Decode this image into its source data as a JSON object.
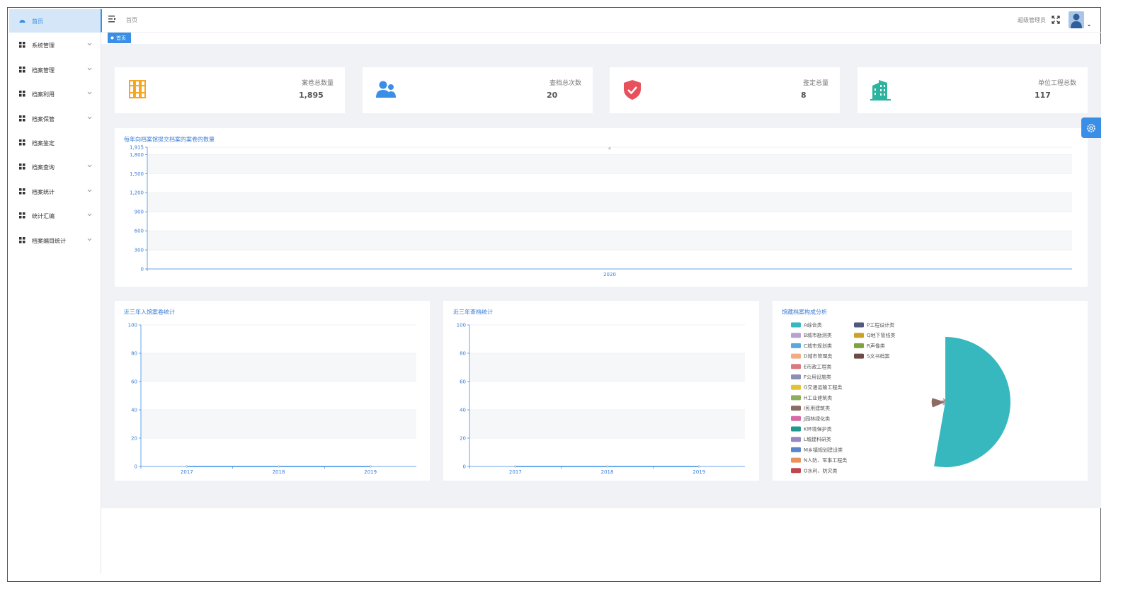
{
  "sidebar": {
    "items": [
      "首页",
      "系统管理",
      "档案管理",
      "档案利用",
      "档案保管",
      "档案鉴定",
      "档案查询",
      "档案统计",
      "统计汇编",
      "档案编目统计"
    ]
  },
  "header": {
    "breadcrumb": "首页",
    "user": "超级管理员"
  },
  "tags": {
    "active": "首页"
  },
  "stats": [
    {
      "label": "案卷总数量",
      "value": "1,895"
    },
    {
      "label": "查档总次数",
      "value": "20"
    },
    {
      "label": "鉴定总量",
      "value": "8"
    },
    {
      "label": "单位工程总数",
      "value": "117"
    }
  ],
  "chart_data": [
    {
      "type": "line",
      "title": "每年向档案馆提交档案的案卷的数量",
      "categories": [
        "2020"
      ],
      "values": [
        1895
      ],
      "color": "#3a8ee6",
      "ylim": [
        0,
        1915
      ],
      "yticks": [
        0,
        300,
        600,
        900,
        {
          "value": 1200,
          "label": "1,200"
        },
        {
          "value": 1500,
          "label": "1,500"
        },
        {
          "value": 1800,
          "label": "1,800"
        },
        {
          "value": 1915,
          "label": "1,915"
        }
      ],
      "grid": true
    },
    {
      "type": "line",
      "title": "近三年入馆案卷统计",
      "categories": [
        "2017",
        "2018",
        "2019"
      ],
      "values": [
        0,
        0,
        0
      ],
      "color": "#3a8ee6",
      "ylim": [
        0,
        100
      ],
      "yticks": [
        0,
        20,
        40,
        60,
        80,
        100
      ],
      "grid": true
    },
    {
      "type": "line",
      "title": "近三年查档统计",
      "categories": [
        "2017",
        "2018",
        "2019"
      ],
      "values": [
        0,
        0,
        0
      ],
      "color": "#3a8ee6",
      "ylim": [
        0,
        100
      ],
      "yticks": [
        0,
        20,
        40,
        60,
        80,
        100
      ],
      "grid": true
    },
    {
      "type": "pie",
      "title": "馆藏档案构成分析",
      "rose": true,
      "categories": [
        "A综合类",
        "B城市勘测类",
        "C城市规划类",
        "D城市管理类",
        "E市政工程类",
        "F公用设施类",
        "G交通运输工程类",
        "H工业建筑类",
        "I民用建筑类",
        "J园林绿化类",
        "K环境保护类",
        "L城建科研类",
        "M乡镇规划建设类",
        "N人防、军事工程类",
        "O水利、防灾类",
        "P工程设计类",
        "Q地下管线类",
        "R声像类",
        "S文书档案"
      ],
      "values": [
        1000,
        40,
        50,
        30,
        60,
        40,
        50,
        30,
        210,
        40,
        20,
        60,
        40,
        20,
        30,
        60,
        40,
        35,
        40
      ],
      "colors": [
        "#37b8bf",
        "#b8a1d0",
        "#5aa7de",
        "#f0ad83",
        "#d97a80",
        "#8b8fb3",
        "#e2c430",
        "#8fae5c",
        "#8d6b63",
        "#d86aa6",
        "#23988f",
        "#9b86c0",
        "#5a86c9",
        "#e8935b",
        "#c1474f",
        "#4f5a7e",
        "#c8a229",
        "#7fa23f",
        "#6d4c46"
      ]
    }
  ]
}
